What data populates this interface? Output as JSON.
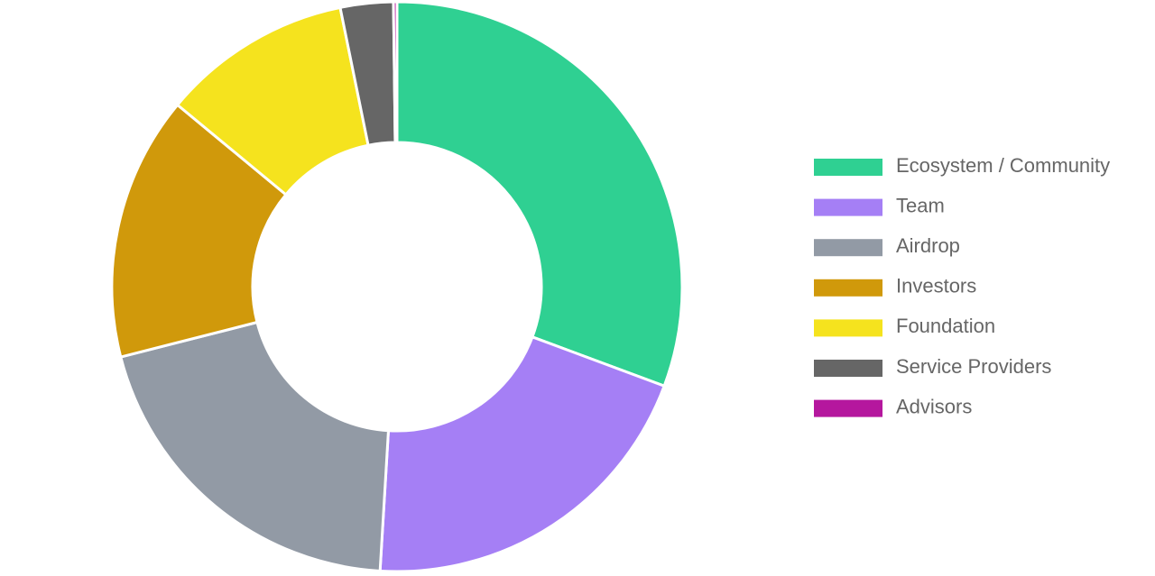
{
  "chart_data": {
    "type": "donut",
    "categories": [
      "Ecosystem / Community",
      "Team",
      "Airdrop",
      "Investors",
      "Foundation",
      "Service Providers",
      "Advisors"
    ],
    "values": [
      30.7,
      20.3,
      20.1,
      15.0,
      10.8,
      3.0,
      0.2
    ],
    "colors": [
      "#2fd092",
      "#a57ff5",
      "#929aa5",
      "#d0990b",
      "#f5e31e",
      "#666666",
      "#b5179e"
    ],
    "legend": "right"
  }
}
